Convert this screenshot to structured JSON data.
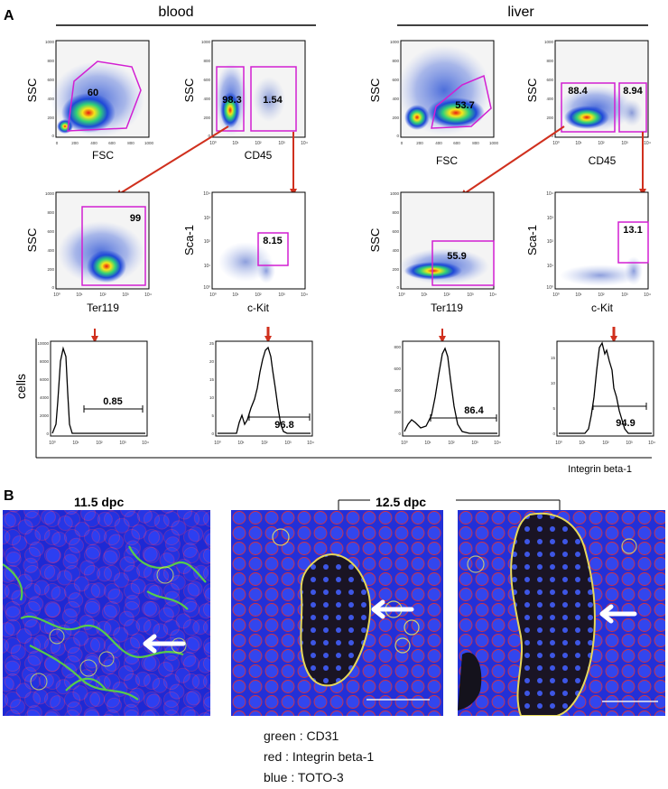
{
  "figure": {
    "panel_a_letter": "A",
    "panel_b_letter": "B",
    "header_blood": "blood",
    "header_liver": "liver",
    "hist_axis_label": "Integrin beta-1",
    "cells_label": "cells"
  },
  "plots": {
    "blood_fsc_ssc": {
      "xlabel": "FSC",
      "ylabel": "SSC",
      "value": "60",
      "xticks": [
        "0",
        "200",
        "400",
        "600",
        "800",
        "1000"
      ],
      "yticks": [
        "1000",
        "800",
        "600",
        "400",
        "200",
        "0"
      ]
    },
    "blood_cd45_ssc": {
      "xlabel": "CD45",
      "ylabel": "SSC",
      "value_left": "98.3",
      "value_right": "1.54",
      "xticks": [
        "10⁰",
        "10¹",
        "10²",
        "10³",
        "10⁴"
      ],
      "yticks": [
        "1000",
        "800",
        "600",
        "400",
        "200",
        "0"
      ]
    },
    "blood_ter119_ssc": {
      "xlabel": "Ter119",
      "ylabel": "SSC",
      "value": "99",
      "xticks": [
        "10⁰",
        "10¹",
        "10²",
        "10³",
        "10⁴"
      ],
      "yticks": [
        "1000",
        "800",
        "600",
        "400",
        "200",
        "0"
      ]
    },
    "blood_ckit_sca1": {
      "xlabel": "c-Kit",
      "ylabel": "Sca-1",
      "value": "8.15",
      "xticks": [
        "10⁰",
        "10¹",
        "10²",
        "10³",
        "10⁴"
      ],
      "yticks": [
        "10⁴",
        "10³",
        "10²",
        "10¹",
        "10⁰"
      ]
    },
    "liver_fsc_ssc": {
      "xlabel": "FSC",
      "ylabel": "SSC",
      "value": "53.7",
      "xticks": [
        "0",
        "200",
        "400",
        "600",
        "800",
        "1000"
      ],
      "yticks": [
        "1000",
        "800",
        "600",
        "400",
        "200",
        "0"
      ]
    },
    "liver_cd45_ssc": {
      "xlabel": "CD45",
      "ylabel": "SSC",
      "value_left": "88.4",
      "value_right": "8.94",
      "xticks": [
        "10⁰",
        "10¹",
        "10²",
        "10³",
        "10⁴"
      ],
      "yticks": [
        "1000",
        "800",
        "600",
        "400",
        "200",
        "0"
      ]
    },
    "liver_ter119_ssc": {
      "xlabel": "Ter119",
      "ylabel": "SSC",
      "value": "55.9",
      "xticks": [
        "10⁰",
        "10¹",
        "10²",
        "10³",
        "10⁴"
      ],
      "yticks": [
        "1000",
        "800",
        "600",
        "400",
        "200",
        "0"
      ]
    },
    "liver_ckit_sca1": {
      "xlabel": "c-Kit",
      "ylabel": "Sca-1",
      "value": "13.1",
      "xticks": [
        "10⁰",
        "10¹",
        "10²",
        "10³",
        "10⁴"
      ],
      "yticks": [
        "10⁴",
        "10³",
        "10²",
        "10¹",
        "10⁰"
      ]
    }
  },
  "histograms": [
    {
      "value": "0.85",
      "yticks": [
        "10000",
        "8000",
        "6000",
        "4000",
        "2000",
        "0"
      ],
      "xticks": [
        "10⁰",
        "10¹",
        "10²",
        "10³",
        "10⁴"
      ]
    },
    {
      "value": "96.8",
      "yticks": [
        "25",
        "20",
        "15",
        "10",
        "5",
        "0"
      ],
      "xticks": [
        "10⁰",
        "10¹",
        "10²",
        "10³",
        "10⁴"
      ]
    },
    {
      "value": "86.4",
      "yticks": [
        "800",
        "600",
        "400",
        "200",
        "0"
      ],
      "xticks": [
        "10⁰",
        "10¹",
        "10²",
        "10³",
        "10⁴"
      ]
    },
    {
      "value": "94.9",
      "yticks": [
        "15",
        "10",
        "5",
        "0"
      ],
      "xticks": [
        "10⁰",
        "10¹",
        "10²",
        "10³",
        "10⁴"
      ]
    }
  ],
  "panel_b": {
    "label_11_5": "11.5 dpc",
    "label_12_5": "12.5 dpc",
    "legend": [
      "green : CD31",
      "red : Integrin beta-1",
      "blue : TOTO-3"
    ]
  }
}
